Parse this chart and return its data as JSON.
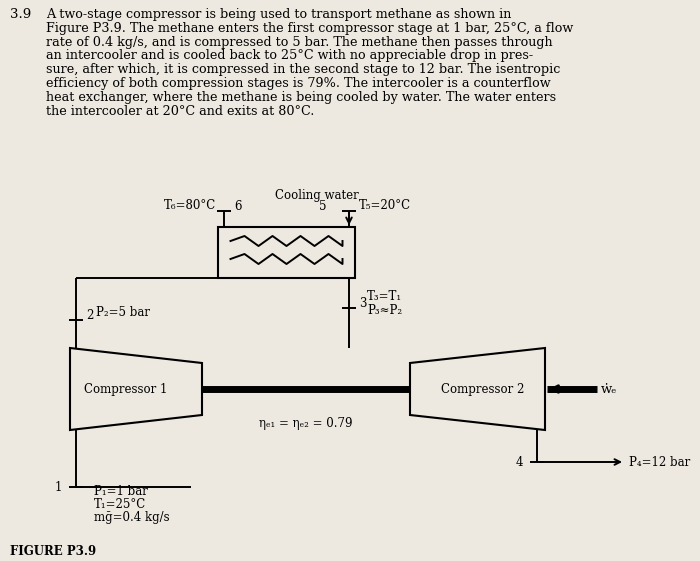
{
  "bg_color": "#ede9e0",
  "title_number": "3.9",
  "paragraph_lines": [
    "A two-stage compressor is being used to transport methane as shown in",
    "Figure P3.9. The methane enters the first compressor stage at 1 bar, 25°C, a flow",
    "rate of 0.4 kg/s, and is compressed to 5 bar. The methane then passes through",
    "an intercooler and is cooled back to 25°C with no appreciable drop in pres-",
    "sure, after which, it is compressed in the second stage to 12 bar. The isentropic",
    "efficiency of both compression stages is 79%. The intercooler is a counterflow",
    "heat exchanger, where the methane is being cooled by water. The water enters",
    "the intercooler at 20°C and exits at 80°C."
  ],
  "figure_label": "FIGURE P3.9",
  "lbl_cooling_water": "Cooling water",
  "lbl_T6": "T₆=80°C",
  "lbl_6": "6",
  "lbl_T5": "T₅=20°C",
  "lbl_5": "5",
  "lbl_T3T1": "T₃=T₁",
  "lbl_P3P2": "P₃≈P₂",
  "lbl_3": "3",
  "lbl_2": "2",
  "lbl_P2": "P₂=5 bar",
  "lbl_comp1": "Compressor 1",
  "lbl_comp2": "Compressor 2",
  "lbl_eta": "ηₑ₁ = ηₑ₂ = 0.79",
  "lbl_Wc": "ẇₑ",
  "lbl_4": "4",
  "lbl_P4": "P₄=12 bar",
  "lbl_1": "1",
  "lbl_P1": "P₁=1 bar",
  "lbl_T1": "T₁=25°C",
  "lbl_mdot": "mḡ=0.4 kg/s"
}
